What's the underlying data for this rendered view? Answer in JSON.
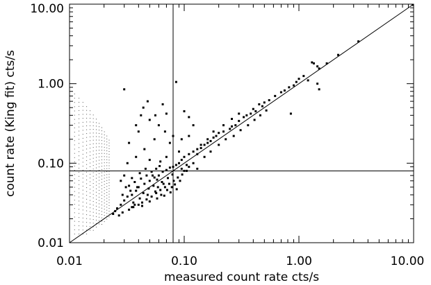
{
  "chart_data": {
    "type": "scatter",
    "xlabel": "measured count rate  cts/s",
    "ylabel": "count rate (King fit) cts/s",
    "x_scale": "log",
    "y_scale": "log",
    "xlim": [
      0.01,
      10.0
    ],
    "ylim": [
      0.01,
      10.0
    ],
    "x_ticks": [
      0.01,
      0.1,
      1.0,
      10.0
    ],
    "x_tick_labels": [
      "0.01",
      "0.10",
      "1.00",
      "10.00"
    ],
    "y_ticks": [
      0.01,
      0.1,
      1.0,
      10.0
    ],
    "y_tick_labels": [
      "0.01",
      "0.10",
      "1.00",
      "10.00"
    ],
    "grid": false,
    "reference_lines": {
      "diagonal": "y = x",
      "vertical_x": 0.08,
      "horizontal_y": 0.08
    },
    "faint_columns": {
      "x": [
        0.011,
        0.012,
        0.013,
        0.014,
        0.015,
        0.016,
        0.017,
        0.018,
        0.019,
        0.02,
        0.021,
        0.022
      ],
      "y_range": [
        0.013,
        0.75
      ]
    },
    "series": [
      {
        "values": [
          [
            9.8,
            9.8
          ],
          [
            3.3,
            3.4
          ],
          [
            2.2,
            2.3
          ],
          [
            1.75,
            1.8
          ],
          [
            1.5,
            1.55
          ],
          [
            1.45,
            1.65
          ],
          [
            1.3,
            1.85
          ],
          [
            1.35,
            1.8
          ],
          [
            1.1,
            1.25
          ],
          [
            1.0,
            1.15
          ],
          [
            0.95,
            1.05
          ],
          [
            0.9,
            0.95
          ],
          [
            0.82,
            0.9
          ],
          [
            0.75,
            0.82
          ],
          [
            0.7,
            0.78
          ],
          [
            0.85,
            0.42
          ],
          [
            1.45,
            1.0
          ],
          [
            1.5,
            0.85
          ],
          [
            1.2,
            1.1
          ],
          [
            0.62,
            0.7
          ],
          [
            0.55,
            0.62
          ],
          [
            0.5,
            0.58
          ],
          [
            0.45,
            0.55
          ],
          [
            0.48,
            0.52
          ],
          [
            0.4,
            0.48
          ],
          [
            0.38,
            0.42
          ],
          [
            0.42,
            0.45
          ],
          [
            0.35,
            0.4
          ],
          [
            0.33,
            0.38
          ],
          [
            0.3,
            0.34
          ],
          [
            0.28,
            0.3
          ],
          [
            0.26,
            0.29
          ],
          [
            0.25,
            0.27
          ],
          [
            0.22,
            0.25
          ],
          [
            0.2,
            0.24
          ],
          [
            0.18,
            0.21
          ],
          [
            0.17,
            0.19
          ],
          [
            0.16,
            0.18
          ],
          [
            0.15,
            0.17
          ],
          [
            0.14,
            0.155
          ],
          [
            0.13,
            0.15
          ],
          [
            0.12,
            0.14
          ],
          [
            0.11,
            0.13
          ],
          [
            0.1,
            0.12
          ],
          [
            0.095,
            0.11
          ],
          [
            0.09,
            0.1
          ],
          [
            0.085,
            0.095
          ],
          [
            0.08,
            0.09
          ],
          [
            0.075,
            0.088
          ],
          [
            0.07,
            0.082
          ],
          [
            0.065,
            0.078
          ],
          [
            0.06,
            0.07
          ],
          [
            0.055,
            0.066
          ],
          [
            0.05,
            0.06
          ],
          [
            0.045,
            0.055
          ],
          [
            0.04,
            0.05
          ],
          [
            0.038,
            0.045
          ],
          [
            0.035,
            0.04
          ],
          [
            0.032,
            0.038
          ],
          [
            0.03,
            0.034
          ],
          [
            0.028,
            0.03
          ],
          [
            0.026,
            0.027
          ],
          [
            0.025,
            0.025
          ],
          [
            0.024,
            0.023
          ],
          [
            0.027,
            0.022
          ],
          [
            0.029,
            0.024
          ],
          [
            0.033,
            0.026
          ],
          [
            0.036,
            0.028
          ],
          [
            0.04,
            0.03
          ],
          [
            0.043,
            0.032
          ],
          [
            0.047,
            0.035
          ],
          [
            0.052,
            0.038
          ],
          [
            0.057,
            0.042
          ],
          [
            0.062,
            0.046
          ],
          [
            0.068,
            0.05
          ],
          [
            0.074,
            0.055
          ],
          [
            0.081,
            0.06
          ],
          [
            0.088,
            0.066
          ],
          [
            0.096,
            0.072
          ],
          [
            0.105,
            0.08
          ],
          [
            0.05,
            0.35
          ],
          [
            0.042,
            0.4
          ],
          [
            0.06,
            0.3
          ],
          [
            0.07,
            0.42
          ],
          [
            0.065,
            0.55
          ],
          [
            0.1,
            0.45
          ],
          [
            0.12,
            0.3
          ],
          [
            0.11,
            0.38
          ],
          [
            0.085,
            1.05
          ],
          [
            0.03,
            0.85
          ],
          [
            0.04,
            0.25
          ],
          [
            0.055,
            0.2
          ],
          [
            0.033,
            0.18
          ],
          [
            0.045,
            0.15
          ],
          [
            0.075,
            0.18
          ],
          [
            0.09,
            0.14
          ],
          [
            0.038,
            0.12
          ],
          [
            0.05,
            0.11
          ],
          [
            0.062,
            0.105
          ],
          [
            0.07,
            0.12
          ],
          [
            0.032,
            0.1
          ],
          [
            0.03,
            0.07
          ],
          [
            0.028,
            0.06
          ],
          [
            0.031,
            0.05
          ],
          [
            0.035,
            0.065
          ],
          [
            0.041,
            0.075
          ],
          [
            0.046,
            0.085
          ],
          [
            0.053,
            0.07
          ],
          [
            0.058,
            0.062
          ],
          [
            0.064,
            0.058
          ],
          [
            0.072,
            0.065
          ],
          [
            0.079,
            0.072
          ],
          [
            0.034,
            0.045
          ],
          [
            0.039,
            0.05
          ],
          [
            0.044,
            0.042
          ],
          [
            0.049,
            0.048
          ],
          [
            0.054,
            0.052
          ],
          [
            0.059,
            0.05
          ],
          [
            0.066,
            0.055
          ],
          [
            0.078,
            0.05
          ],
          [
            0.036,
            0.032
          ],
          [
            0.041,
            0.036
          ],
          [
            0.048,
            0.04
          ],
          [
            0.056,
            0.044
          ],
          [
            0.063,
            0.04
          ],
          [
            0.071,
            0.046
          ],
          [
            0.083,
            0.054
          ],
          [
            0.092,
            0.06
          ],
          [
            0.2,
            0.17
          ],
          [
            0.23,
            0.2
          ],
          [
            0.27,
            0.22
          ],
          [
            0.31,
            0.26
          ],
          [
            0.36,
            0.3
          ],
          [
            0.41,
            0.35
          ],
          [
            0.46,
            0.4
          ],
          [
            0.52,
            0.46
          ],
          [
            0.18,
            0.25
          ],
          [
            0.22,
            0.3
          ],
          [
            0.26,
            0.36
          ],
          [
            0.3,
            0.42
          ],
          [
            0.19,
            0.22
          ],
          [
            0.16,
            0.2
          ],
          [
            0.14,
            0.17
          ],
          [
            0.13,
            0.13
          ],
          [
            0.15,
            0.12
          ],
          [
            0.17,
            0.14
          ],
          [
            0.12,
            0.1
          ],
          [
            0.11,
            0.09
          ],
          [
            0.13,
            0.085
          ],
          [
            0.1,
            0.08
          ],
          [
            0.095,
            0.085
          ],
          [
            0.105,
            0.095
          ],
          [
            0.048,
            0.6
          ],
          [
            0.044,
            0.5
          ],
          [
            0.056,
            0.4
          ],
          [
            0.038,
            0.3
          ],
          [
            0.068,
            0.25
          ],
          [
            0.08,
            0.22
          ],
          [
            0.095,
            0.2
          ],
          [
            0.11,
            0.22
          ],
          [
            0.035,
            0.028
          ],
          [
            0.037,
            0.03
          ],
          [
            0.043,
            0.029
          ],
          [
            0.05,
            0.033
          ],
          [
            0.058,
            0.036
          ],
          [
            0.067,
            0.039
          ],
          [
            0.076,
            0.043
          ],
          [
            0.086,
            0.047
          ],
          [
            0.029,
            0.04
          ],
          [
            0.033,
            0.052
          ],
          [
            0.037,
            0.058
          ],
          [
            0.042,
            0.064
          ],
          [
            0.047,
            0.07
          ],
          [
            0.052,
            0.078
          ],
          [
            0.057,
            0.085
          ],
          [
            0.061,
            0.092
          ]
        ]
      }
    ]
  }
}
